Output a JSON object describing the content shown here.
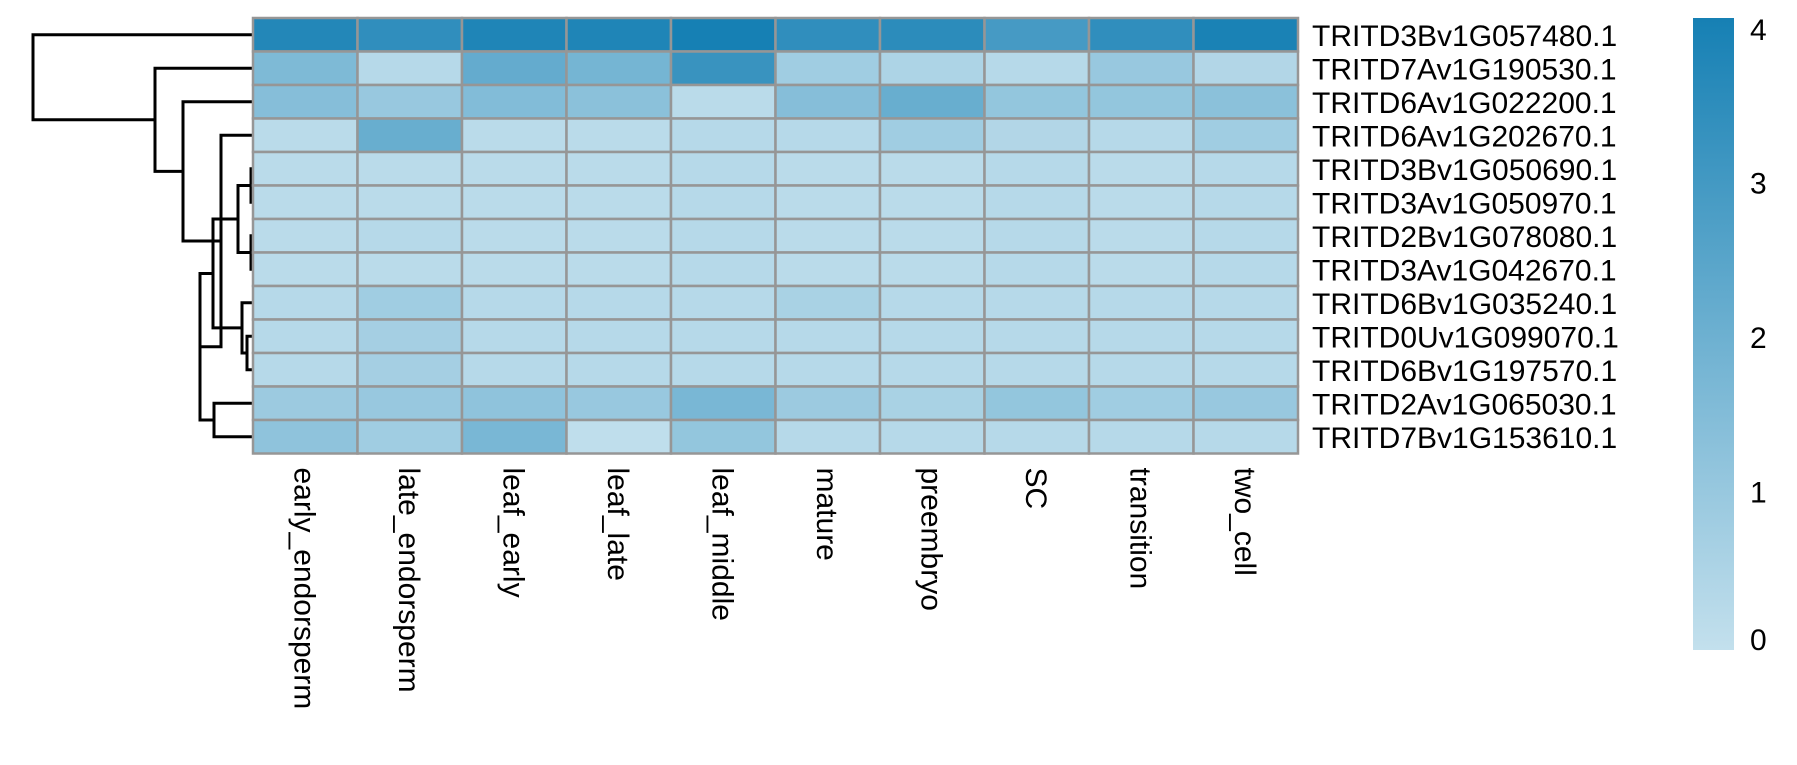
{
  "chart_data": {
    "type": "heatmap",
    "title": "",
    "rows": [
      "TRITD3Bv1G057480.1",
      "TRITD7Av1G190530.1",
      "TRITD6Av1G022200.1",
      "TRITD6Av1G202670.1",
      "TRITD3Bv1G050690.1",
      "TRITD3Av1G050970.1",
      "TRITD2Bv1G078080.1",
      "TRITD3Av1G042670.1",
      "TRITD6Bv1G035240.1",
      "TRITD0Uv1G099070.1",
      "TRITD6Bv1G197570.1",
      "TRITD2Av1G065030.1",
      "TRITD7Bv1G153610.1"
    ],
    "columns": [
      "early_endorsperm",
      "late_endorsperm",
      "leaf_early",
      "leaf_late",
      "leaf_middle",
      "mature",
      "preembryo",
      "SC",
      "transition",
      "two_cell"
    ],
    "values": [
      [
        3.7,
        3.4,
        3.8,
        3.8,
        4.0,
        3.4,
        3.5,
        2.9,
        3.4,
        3.9
      ],
      [
        1.6,
        0.3,
        2.2,
        1.8,
        3.2,
        0.8,
        0.5,
        0.3,
        1.0,
        0.4
      ],
      [
        1.4,
        1.0,
        1.5,
        1.3,
        0.2,
        1.4,
        2.1,
        1.1,
        1.1,
        1.3
      ],
      [
        0.2,
        2.1,
        0.2,
        0.2,
        0.3,
        0.3,
        0.8,
        0.4,
        0.3,
        0.8
      ],
      [
        0.2,
        0.2,
        0.2,
        0.2,
        0.3,
        0.2,
        0.2,
        0.3,
        0.2,
        0.3
      ],
      [
        0.2,
        0.2,
        0.2,
        0.2,
        0.3,
        0.2,
        0.2,
        0.3,
        0.2,
        0.3
      ],
      [
        0.2,
        0.3,
        0.2,
        0.2,
        0.3,
        0.2,
        0.2,
        0.3,
        0.2,
        0.3
      ],
      [
        0.2,
        0.2,
        0.2,
        0.2,
        0.3,
        0.2,
        0.2,
        0.3,
        0.2,
        0.3
      ],
      [
        0.3,
        0.8,
        0.3,
        0.3,
        0.3,
        0.6,
        0.3,
        0.3,
        0.3,
        0.3
      ],
      [
        0.3,
        0.7,
        0.3,
        0.3,
        0.3,
        0.3,
        0.3,
        0.3,
        0.3,
        0.3
      ],
      [
        0.3,
        0.7,
        0.3,
        0.3,
        0.3,
        0.3,
        0.3,
        0.3,
        0.3,
        0.3
      ],
      [
        0.9,
        1.0,
        1.2,
        1.0,
        1.7,
        0.9,
        0.6,
        1.1,
        0.8,
        1.0
      ],
      [
        1.2,
        0.8,
        1.7,
        0.1,
        1.1,
        0.3,
        0.3,
        0.3,
        0.3,
        0.3
      ]
    ],
    "legend": {
      "min": 0,
      "max": 4,
      "ticks": [
        4,
        3,
        2,
        1,
        0
      ],
      "placement": "right"
    },
    "colors": {
      "low": "#c3e0ed",
      "high": "#1680b4",
      "cell_border": "#969696",
      "tree": "#000000"
    },
    "dendrogram": {
      "placement": "left",
      "merge_order": [
        [
          4,
          5
        ],
        [
          6,
          7
        ],
        [
          8,
          9
        ],
        [
          10,
          11
        ],
        [
          12,
          13
        ],
        [
          -1,
          -2
        ],
        [
          -3,
          -4
        ],
        [
          -6,
          -7
        ],
        [
          -5,
          -8
        ],
        [
          -9,
          -10
        ],
        [
          -11,
          3
        ],
        [
          -12,
          2
        ],
        [
          1,
          -13
        ]
      ]
    },
    "grid": false
  }
}
